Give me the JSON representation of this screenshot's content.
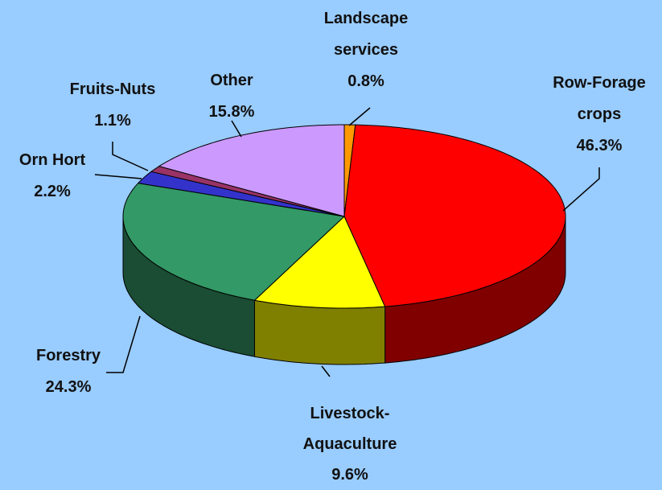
{
  "chart_data": {
    "type": "pie",
    "categories": [
      "Landscape services",
      "Row-Forage crops",
      "Livestock-Aquaculture",
      "Forestry",
      "Orn Hort",
      "Fruits-Nuts",
      "Other"
    ],
    "values": [
      0.8,
      46.3,
      9.6,
      24.3,
      2.2,
      1.1,
      15.8
    ],
    "value_labels": [
      "0.8%",
      "46.3%",
      "9.6%",
      "24.3%",
      "2.2%",
      "1.1%",
      "15.8%"
    ],
    "colors": [
      "#ff9900",
      "#ff0000",
      "#ffff00",
      "#339966",
      "#3333cc",
      "#993366",
      "#cc99ff"
    ]
  }
}
